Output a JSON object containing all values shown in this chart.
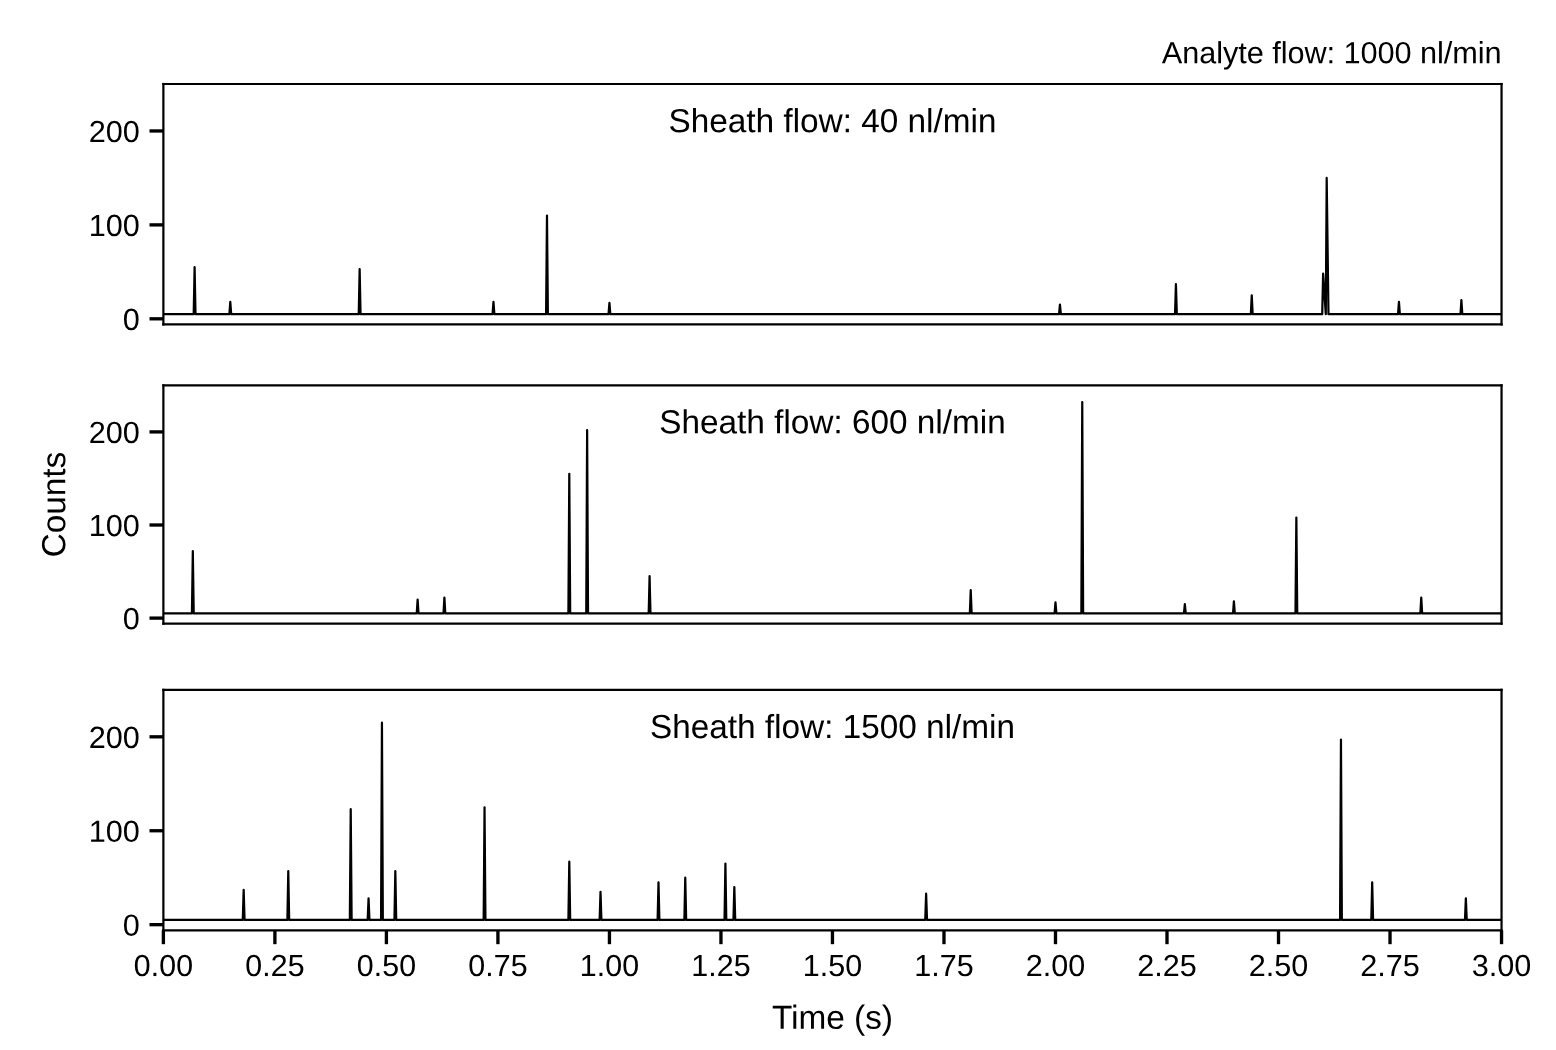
{
  "chart_data": [
    {
      "type": "line",
      "title": "Sheath flow: 40 nl/min",
      "annotations": [
        "Analyte flow: 1000 nl/min"
      ],
      "tick_labels": "y",
      "color": "#000000",
      "x": [
        0,
        0.068,
        0.07,
        0.072,
        0.148,
        0.15,
        0.152,
        0.438,
        0.44,
        0.442,
        0.738,
        0.74,
        0.742,
        0.858,
        0.86,
        0.862,
        0.998,
        1.0,
        1.002,
        2.008,
        2.01,
        2.012,
        2.268,
        2.27,
        2.272,
        2.438,
        2.44,
        2.442,
        2.598,
        2.6,
        2.606,
        2.608,
        2.612,
        2.768,
        2.77,
        2.772,
        2.908,
        2.91,
        2.912,
        3.0
      ],
      "values": [
        5,
        5,
        55,
        5,
        5,
        18,
        5,
        5,
        53,
        5,
        5,
        18,
        5,
        5,
        110,
        5,
        5,
        17,
        5,
        5,
        15,
        5,
        5,
        37,
        5,
        5,
        25,
        5,
        5,
        48,
        5,
        150,
        5,
        5,
        18,
        5,
        5,
        20,
        5,
        5
      ],
      "xlim": [
        0,
        3
      ],
      "ylim": [
        -6,
        250
      ],
      "yticks": [
        0,
        100,
        200
      ]
    },
    {
      "type": "line",
      "title": "Sheath flow: 600 nl/min",
      "ylabel": "Counts",
      "tick_labels": "y",
      "color": "#000000",
      "x": [
        0,
        0.064,
        0.066,
        0.068,
        0.568,
        0.57,
        0.572,
        0.628,
        0.63,
        0.632,
        0.908,
        0.91,
        0.912,
        0.948,
        0.95,
        0.952,
        1.088,
        1.09,
        1.092,
        1.808,
        1.81,
        1.812,
        1.998,
        2.0,
        2.002,
        2.058,
        2.06,
        2.062,
        2.288,
        2.29,
        2.292,
        2.398,
        2.4,
        2.402,
        2.538,
        2.54,
        2.542,
        2.818,
        2.82,
        2.822,
        3.0
      ],
      "values": [
        5,
        5,
        72,
        5,
        5,
        20,
        5,
        5,
        22,
        5,
        5,
        155,
        5,
        5,
        202,
        5,
        5,
        45,
        5,
        5,
        30,
        5,
        5,
        17,
        5,
        5,
        232,
        5,
        5,
        15,
        5,
        5,
        18,
        5,
        5,
        108,
        5,
        5,
        22,
        5,
        5
      ],
      "xlim": [
        0,
        3
      ],
      "ylim": [
        -6,
        250
      ],
      "yticks": [
        0,
        100,
        200
      ]
    },
    {
      "type": "line",
      "title": "Sheath flow: 1500 nl/min",
      "xlabel": "Time (s)",
      "color": "#000000",
      "x": [
        0,
        0.178,
        0.18,
        0.182,
        0.278,
        0.28,
        0.282,
        0.418,
        0.42,
        0.422,
        0.458,
        0.46,
        0.462,
        0.488,
        0.49,
        0.492,
        0.518,
        0.52,
        0.522,
        0.718,
        0.72,
        0.722,
        0.908,
        0.91,
        0.912,
        0.978,
        0.98,
        0.982,
        1.108,
        1.11,
        1.112,
        1.168,
        1.17,
        1.172,
        1.258,
        1.26,
        1.262,
        1.278,
        1.28,
        1.282,
        1.708,
        1.71,
        1.712,
        2.638,
        2.64,
        2.642,
        2.708,
        2.71,
        2.712,
        2.918,
        2.92,
        2.922,
        3.0
      ],
      "values": [
        5,
        5,
        37,
        5,
        5,
        57,
        5,
        5,
        123,
        5,
        5,
        28,
        5,
        5,
        215,
        5,
        5,
        57,
        5,
        5,
        125,
        5,
        5,
        67,
        5,
        5,
        35,
        5,
        5,
        45,
        5,
        5,
        50,
        5,
        5,
        65,
        5,
        5,
        40,
        5,
        5,
        33,
        5,
        5,
        197,
        5,
        5,
        45,
        5,
        5,
        28,
        5,
        5
      ],
      "xlim": [
        0,
        3
      ],
      "xticks": [
        {
          "value": 0,
          "label": "0.00"
        },
        {
          "value": 0.25,
          "label": "0.25"
        },
        {
          "value": 0.5,
          "label": "0.50"
        },
        {
          "value": 0.75,
          "label": "0.75"
        },
        {
          "value": 1,
          "label": "1.00"
        },
        {
          "value": 1.25,
          "label": "1.25"
        },
        {
          "value": 1.5,
          "label": "1.50"
        },
        {
          "value": 1.75,
          "label": "1.75"
        },
        {
          "value": 2,
          "label": "2.00"
        },
        {
          "value": 2.25,
          "label": "2.25"
        },
        {
          "value": 2.5,
          "label": "2.50"
        },
        {
          "value": 2.75,
          "label": "2.75"
        },
        {
          "value": 3,
          "label": "3.00"
        }
      ],
      "ylim": [
        -6,
        250
      ],
      "yticks": [
        0,
        100,
        200
      ]
    }
  ]
}
